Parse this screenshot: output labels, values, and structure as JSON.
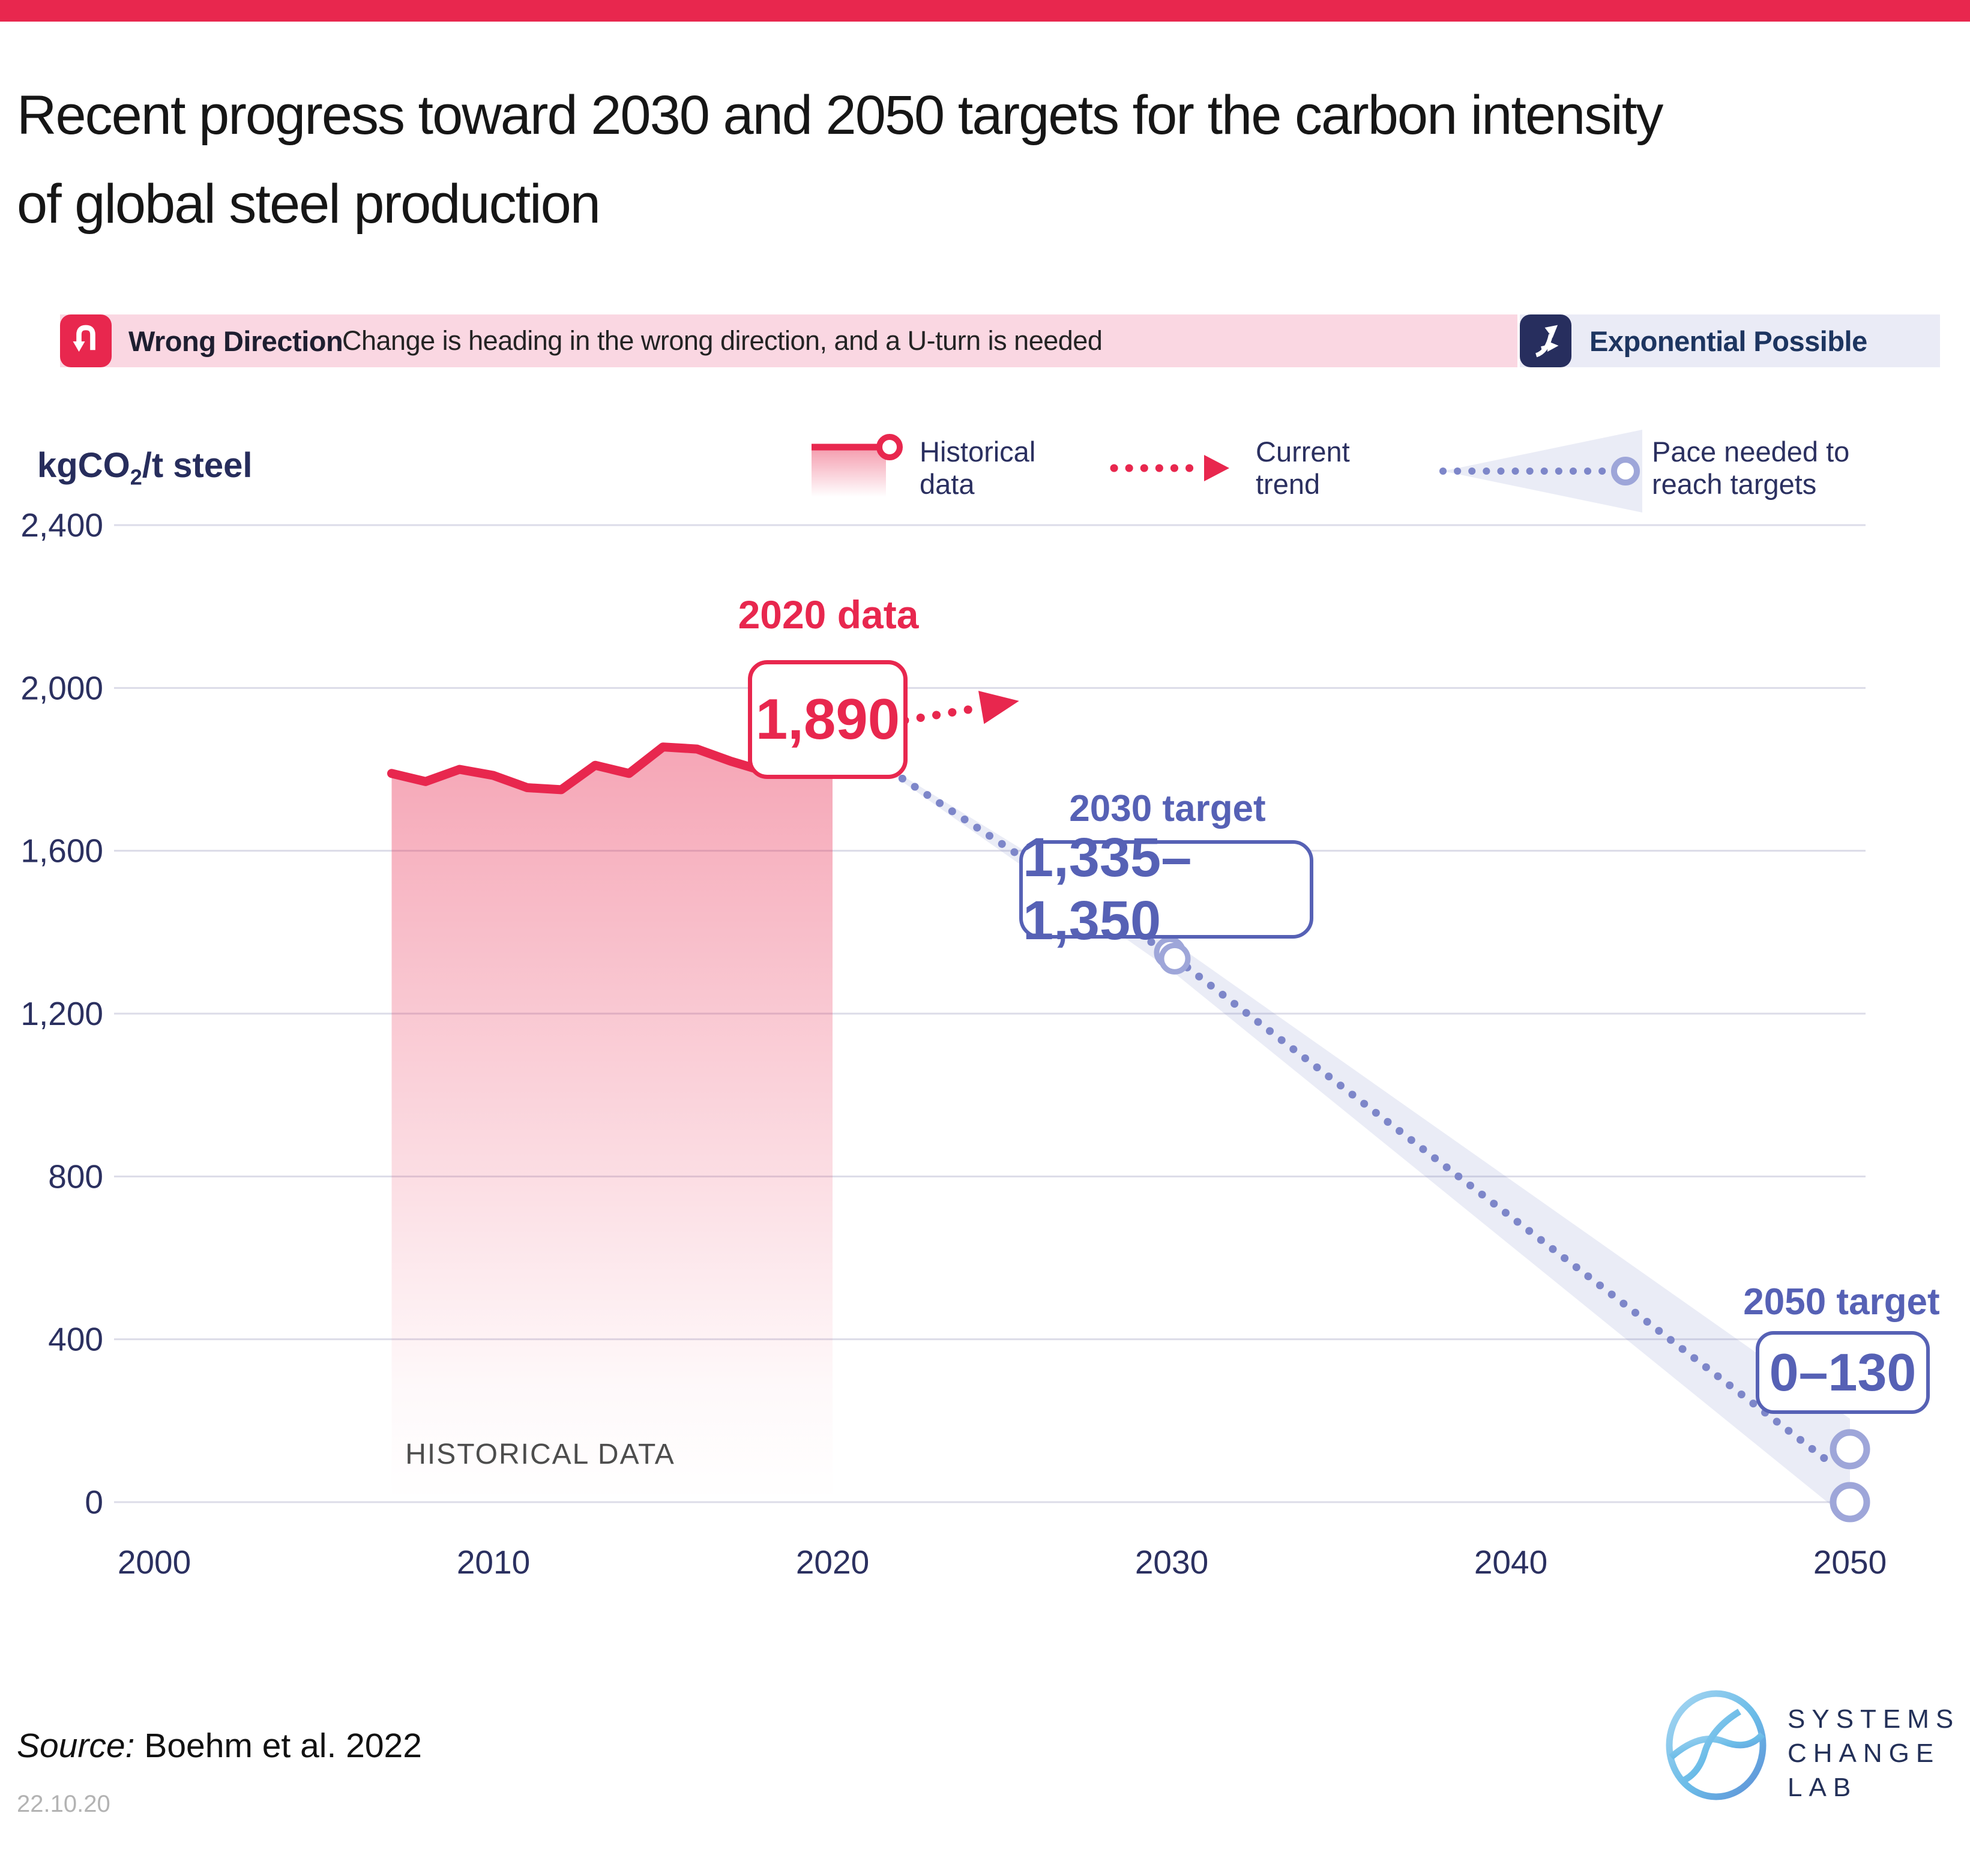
{
  "page": {
    "top_bar_color": "#E8274E",
    "background": "#ffffff"
  },
  "title": {
    "line1": "Recent progress toward 2030 and 2050 targets for the carbon intensity",
    "line2": "of global steel production"
  },
  "banner": {
    "wrong_direction": {
      "label": "Wrong Direction",
      "description": "Change is heading in the wrong direction, and a U-turn is needed",
      "icon": "u-turn-arrow",
      "badge_color": "#E8274E",
      "bg_color": "#FAD7E2"
    },
    "exponential_possible": {
      "label": "Exponential Possible",
      "icon": "exponential-arrows",
      "badge_color": "#272E5E",
      "bg_color": "#EAEBF6"
    }
  },
  "unit_label": {
    "prefix": "kgCO",
    "subscript": "2",
    "suffix": "/t steel"
  },
  "legend": {
    "historical": {
      "line1": "Historical",
      "line2": "data"
    },
    "current_trend": {
      "line1": "Current",
      "line2": "trend"
    },
    "pace": {
      "line1": "Pace needed to",
      "line2": "reach targets"
    }
  },
  "annotations": {
    "data2020": {
      "title": "2020 data",
      "value": "1,890"
    },
    "target2030": {
      "title": "2030 target",
      "value": "1,335–1,350"
    },
    "target2050": {
      "title": "2050 target",
      "value": "0–130"
    },
    "historical_area_label": "HISTORICAL DATA"
  },
  "footer": {
    "source_label": "Source:",
    "source_text": "Boehm et al. 2022",
    "date": "22.10.20",
    "logo": {
      "line1": "SYSTEMS",
      "line2": "CHANGE",
      "line3": "LAB"
    }
  },
  "chart_data": {
    "type": "line",
    "title": "Recent progress toward 2030 and 2050 targets for the carbon intensity of global steel production",
    "ylabel": "kgCO2/t steel",
    "xlabel": "",
    "ylim": [
      0,
      2400
    ],
    "xlim": [
      2000,
      2050
    ],
    "grid": "horizontal-only",
    "legend_position": "top",
    "y_ticks": [
      0,
      400,
      800,
      1200,
      1600,
      2000,
      2400
    ],
    "y_tick_labels": [
      "0",
      "400",
      "800",
      "1,200",
      "1,600",
      "2,000",
      "2,400"
    ],
    "x_ticks": [
      2000,
      2010,
      2020,
      2030,
      2040,
      2050
    ],
    "x_tick_labels": [
      "2000",
      "2010",
      "2020",
      "2030",
      "2040",
      "2050"
    ],
    "series": [
      {
        "name": "Historical data",
        "style": "solid-line-with-area",
        "color": "#E8274E",
        "x": [
          2007,
          2008,
          2009,
          2010,
          2011,
          2012,
          2013,
          2014,
          2015,
          2016,
          2017,
          2018,
          2019,
          2020
        ],
        "values": [
          1790,
          1770,
          1800,
          1785,
          1755,
          1750,
          1810,
          1790,
          1855,
          1850,
          1820,
          1795,
          1845,
          1890
        ],
        "endpoint": {
          "x": 2020,
          "value": 1890
        }
      },
      {
        "name": "Current trend",
        "style": "dotted-arrow",
        "color": "#E8274E",
        "x": [
          2020,
          2025.5
        ],
        "values": [
          1890,
          1968
        ]
      },
      {
        "name": "Pace needed to reach targets",
        "style": "dotted-with-band",
        "color": "#7D86C9",
        "x": [
          2020,
          2030,
          2050
        ],
        "values": [
          1890,
          1343,
          80
        ],
        "band_color": "#7D86C9",
        "targets": [
          {
            "x": 2030,
            "range": [
              1335,
              1350
            ]
          },
          {
            "x": 2050,
            "range": [
              0,
              130
            ]
          }
        ]
      }
    ]
  }
}
